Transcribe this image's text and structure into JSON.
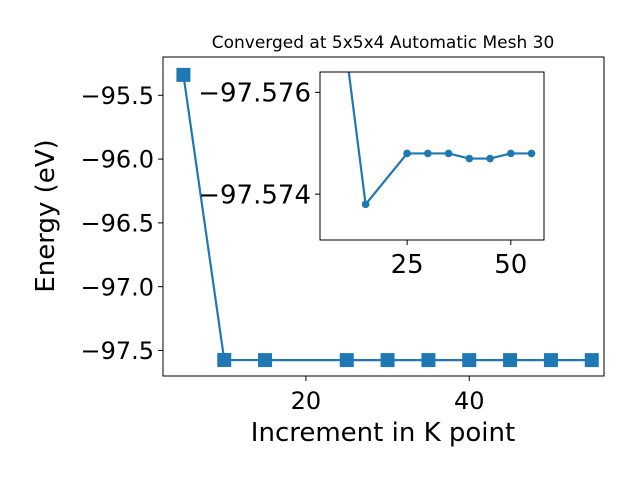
{
  "chart_data": [
    {
      "type": "line",
      "title": "Converged at 5x5x4 Automatic Mesh 30",
      "xlabel": "Increment in K point",
      "ylabel": "Energy (eV)",
      "xlim": [
        2.5,
        56.5
      ],
      "ylim": [
        -97.7,
        -95.2
      ],
      "xticks": [
        20,
        40
      ],
      "yticks": [
        -95.5,
        -96.0,
        -96.5,
        -97.0,
        -97.5
      ],
      "ytick_labels": [
        "−95.5",
        "−96.0",
        "−96.5",
        "−97.0",
        "−97.5"
      ],
      "marker": "square",
      "color": "#1f77b4",
      "series": [
        {
          "x": [
            5,
            10,
            15,
            25,
            30,
            35,
            40,
            45,
            50,
            55
          ],
          "y": [
            -95.34,
            -97.5744,
            -97.5754,
            -97.5754,
            -97.5754,
            -97.5754,
            -97.5755,
            -97.5755,
            -97.5755,
            -97.5755
          ]
        }
      ]
    },
    {
      "type": "line",
      "title": "",
      "xlim": [
        4,
        58
      ],
      "ylim": [
        -97.5731,
        -97.5764
      ],
      "xticks": [
        25,
        50
      ],
      "yticks": [
        -97.576,
        -97.574
      ],
      "ytick_labels": [
        "−97.576",
        "−97.574"
      ],
      "marker": "circle",
      "color": "#1f77b4",
      "series": [
        {
          "x": [
            10,
            15,
            25,
            30,
            35,
            40,
            45,
            50,
            55
          ],
          "y": [
            -97.577,
            -97.5738,
            -97.5748,
            -97.5748,
            -97.5748,
            -97.5747,
            -97.5747,
            -97.5748,
            -97.5748
          ]
        }
      ]
    }
  ]
}
